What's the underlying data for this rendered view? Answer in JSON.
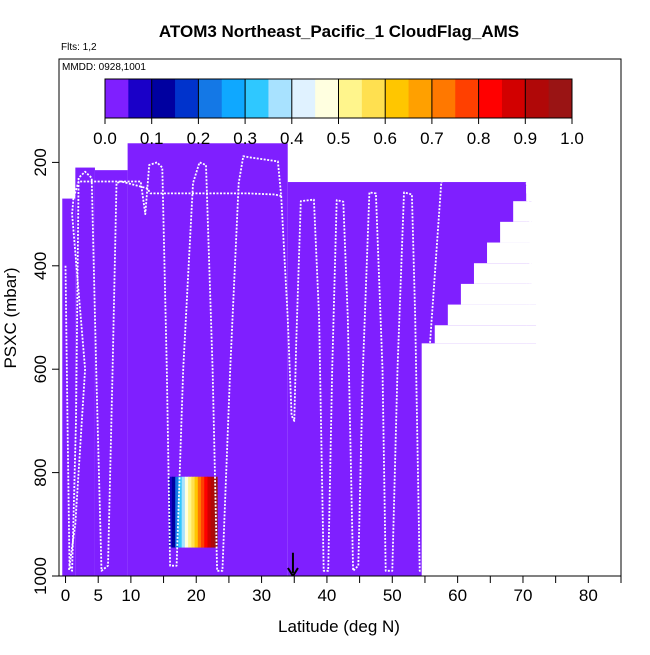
{
  "chart_data": {
    "type": "heatmap",
    "title": "ATOM3 Northeast_Pacific_1 CloudFlag_AMS",
    "annotations": [
      "Flts: 1,2",
      "MMDD: 0928,1001"
    ],
    "xlabel": "Latitude (deg N)",
    "ylabel": "PSXC (mbar)",
    "xlim": [
      -1,
      85
    ],
    "ylim": [
      1000,
      0
    ],
    "x_ticks": [
      0,
      5,
      10,
      20,
      30,
      40,
      50,
      60,
      70,
      80
    ],
    "x_minor_ticks": [
      15,
      25,
      35,
      45,
      55,
      65,
      75,
      85
    ],
    "y_ticks": [
      200,
      400,
      600,
      800,
      1000
    ],
    "colorbar": {
      "range": [
        0,
        1
      ],
      "ticks": [
        0.0,
        0.1,
        0.2,
        0.3,
        0.4,
        0.5,
        0.6,
        0.7,
        0.8,
        0.9,
        1.0
      ],
      "tick_labels": [
        "0.0",
        "0.1",
        "0.2",
        "0.3",
        "0.4",
        "0.5",
        "0.6",
        "0.7",
        "0.8",
        "0.9",
        "1.0"
      ],
      "colors": [
        "#7f1fff",
        "#1a00c8",
        "#0000a0",
        "#0033cc",
        "#1478e6",
        "#0fa8ff",
        "#2fc8ff",
        "#a8e2ff",
        "#e0f2ff",
        "#ffffe0",
        "#fff58c",
        "#ffe050",
        "#ffc600",
        "#ffa000",
        "#ff7800",
        "#ff4000",
        "#ff0000",
        "#d20000",
        "#b00808",
        "#9a1414"
      ]
    },
    "fill_color": "#7f1fff",
    "filled_regions": [
      {
        "lat": [
          -0.5,
          1.5
        ],
        "p": [
          270,
          1000
        ]
      },
      {
        "lat": [
          1.5,
          4.5
        ],
        "p": [
          210,
          1000
        ]
      },
      {
        "lat": [
          4.5,
          9.5
        ],
        "p": [
          215,
          1000
        ]
      },
      {
        "lat": [
          9.5,
          34
        ],
        "p": [
          163,
          1000
        ]
      },
      {
        "lat": [
          34,
          70.5
        ],
        "p": [
          238,
          1000
        ]
      },
      {
        "lat": [
          70.5,
          71.3
        ],
        "p": [
          260,
          1000
        ]
      },
      {
        "lat": [
          71.3,
          72
        ],
        "p": [
          460,
          1000
        ]
      }
    ],
    "missing_regions": [
      {
        "lat": [
          54.5,
          85
        ],
        "p": [
          550,
          1000
        ]
      },
      {
        "lat": [
          56.5,
          85
        ],
        "p": [
          515,
          550
        ]
      },
      {
        "lat": [
          58.5,
          85
        ],
        "p": [
          475,
          515
        ]
      },
      {
        "lat": [
          60.5,
          85
        ],
        "p": [
          435,
          475
        ]
      },
      {
        "lat": [
          62.5,
          85
        ],
        "p": [
          395,
          435
        ]
      },
      {
        "lat": [
          64.5,
          85
        ],
        "p": [
          355,
          395
        ]
      },
      {
        "lat": [
          66.5,
          85
        ],
        "p": [
          315,
          355
        ]
      },
      {
        "lat": [
          68.5,
          85
        ],
        "p": [
          275,
          315
        ]
      },
      {
        "lat": [
          70.5,
          85
        ],
        "p": [
          250,
          275
        ]
      },
      {
        "lat": [
          72,
          85
        ],
        "p": [
          0,
          250
        ]
      },
      {
        "lat": [
          71.3,
          72
        ],
        "p": [
          0,
          460
        ]
      },
      {
        "lat": [
          70.5,
          71.3
        ],
        "p": [
          0,
          260
        ]
      }
    ],
    "colored_cloud_block": {
      "lat": [
        15.8,
        23.2
      ],
      "p": [
        808,
        945
      ],
      "values": [
        0.08,
        0.12,
        0.2,
        0.3,
        0.38,
        0.45,
        0.52,
        0.58,
        0.64,
        0.7,
        0.76,
        0.82,
        0.88,
        0.93,
        0.97
      ]
    },
    "flight_track": [
      [
        0,
        400
      ],
      [
        0.3,
        700
      ],
      [
        0.6,
        980
      ],
      [
        1,
        990
      ],
      [
        1.6,
        700
      ],
      [
        2,
        230
      ],
      [
        3,
        218
      ],
      [
        4,
        230
      ],
      [
        4.7,
        600
      ],
      [
        5.5,
        990
      ],
      [
        6.5,
        980
      ],
      [
        7.2,
        600
      ],
      [
        7.8,
        240
      ],
      [
        8.5,
        237
      ],
      [
        11.5,
        237
      ],
      [
        12.2,
        300
      ],
      [
        12.8,
        205
      ],
      [
        14,
        200
      ],
      [
        14.8,
        210
      ],
      [
        15.5,
        600
      ],
      [
        16,
        980
      ],
      [
        17,
        980
      ],
      [
        18,
        600
      ],
      [
        19.5,
        240
      ],
      [
        20.5,
        200
      ],
      [
        21.5,
        205
      ],
      [
        22.5,
        600
      ],
      [
        23.2,
        990
      ],
      [
        24,
        990
      ],
      [
        25.2,
        600
      ],
      [
        26.5,
        240
      ],
      [
        27.2,
        188
      ],
      [
        28,
        190
      ],
      [
        32.5,
        198
      ],
      [
        33,
        265
      ],
      [
        32,
        262
      ],
      [
        28,
        260
      ],
      [
        13,
        260
      ],
      [
        12.5,
        250
      ],
      [
        8.5,
        237
      ],
      [
        2,
        237
      ],
      [
        1.2,
        270
      ],
      [
        1,
        300
      ],
      [
        3,
        600
      ],
      [
        1.5,
        900
      ],
      [
        0.5,
        990
      ]
    ],
    "flight_track_2": [
      [
        33,
        265
      ],
      [
        34,
        500
      ],
      [
        34.6,
        690
      ],
      [
        35,
        700
      ],
      [
        35.3,
        550
      ],
      [
        36,
        275
      ],
      [
        38,
        272
      ],
      [
        38.8,
        500
      ],
      [
        39.5,
        990
      ],
      [
        40.2,
        990
      ],
      [
        40.8,
        600
      ],
      [
        41.5,
        273
      ],
      [
        42.5,
        276
      ],
      [
        43.2,
        500
      ],
      [
        44,
        990
      ],
      [
        44.8,
        980
      ],
      [
        45.5,
        600
      ],
      [
        46.5,
        258
      ],
      [
        47.5,
        260
      ],
      [
        48.5,
        600
      ],
      [
        49,
        990
      ],
      [
        50,
        990
      ],
      [
        50.8,
        600
      ],
      [
        51.8,
        258
      ],
      [
        53,
        262
      ],
      [
        53.5,
        500
      ],
      [
        54.2,
        990
      ],
      [
        55,
        990
      ],
      [
        55.5,
        600
      ],
      [
        57.5,
        238
      ],
      [
        58.5,
        230
      ],
      [
        70.5,
        230
      ],
      [
        71.2,
        330
      ],
      [
        71,
        480
      ]
    ],
    "markers": [
      {
        "type": "arrow-down",
        "lat": 34.8,
        "p": [
          955,
          1000
        ]
      }
    ]
  }
}
